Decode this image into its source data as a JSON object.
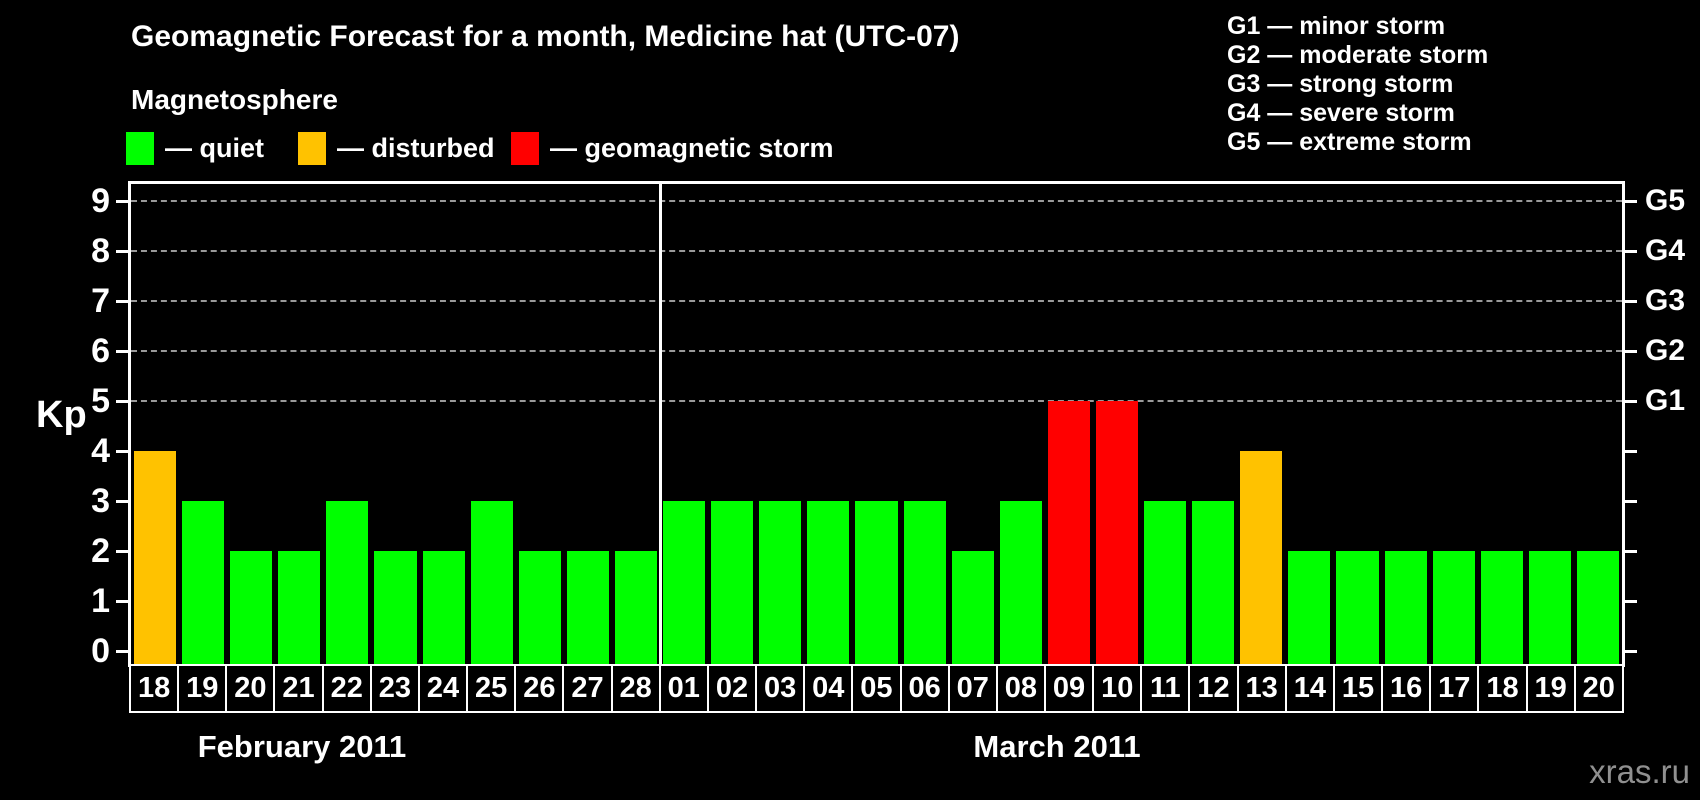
{
  "title": "Geomagnetic Forecast for a month, Medicine hat (UTC-07)",
  "legend": {
    "heading": "Magnetosphere",
    "items": [
      {
        "name": "quiet",
        "label": "— quiet",
        "color": "#00ff00"
      },
      {
        "name": "disturbed",
        "label": "— disturbed",
        "color": "#ffc200"
      },
      {
        "name": "storm",
        "label": "— geomagnetic storm",
        "color": "#ff0000"
      }
    ]
  },
  "g_scale_legend": {
    "lines": [
      "G1 — minor storm",
      "G2 — moderate storm",
      "G3 — strong storm",
      "G4 — severe storm",
      "G5 — extreme storm"
    ]
  },
  "watermark": "xras.ru",
  "chart_data": {
    "type": "bar",
    "title": "Geomagnetic Forecast for a month, Medicine hat (UTC-07)",
    "ylabel": "Kp",
    "ylim": [
      0,
      9
    ],
    "y_ticks": [
      0,
      1,
      2,
      3,
      4,
      5,
      6,
      7,
      8,
      9
    ],
    "gridlines_at_kp": [
      5,
      6,
      7,
      8,
      9
    ],
    "grid": "dashed horizontal lines at Kp 5 to 9",
    "legend_position": "top",
    "right_axis_ticks": [
      {
        "kp": 5,
        "label": "G1"
      },
      {
        "kp": 6,
        "label": "G2"
      },
      {
        "kp": 7,
        "label": "G3"
      },
      {
        "kp": 8,
        "label": "G4"
      },
      {
        "kp": 9,
        "label": "G5"
      }
    ],
    "status_colors": {
      "quiet": "#00ff00",
      "disturbed": "#ffc200",
      "storm": "#ff0000"
    },
    "months": [
      {
        "label": "February 2011",
        "days": [
          {
            "day": "18",
            "kp": 4,
            "status": "disturbed"
          },
          {
            "day": "19",
            "kp": 3,
            "status": "quiet"
          },
          {
            "day": "20",
            "kp": 2,
            "status": "quiet"
          },
          {
            "day": "21",
            "kp": 2,
            "status": "quiet"
          },
          {
            "day": "22",
            "kp": 3,
            "status": "quiet"
          },
          {
            "day": "23",
            "kp": 2,
            "status": "quiet"
          },
          {
            "day": "24",
            "kp": 2,
            "status": "quiet"
          },
          {
            "day": "25",
            "kp": 3,
            "status": "quiet"
          },
          {
            "day": "26",
            "kp": 2,
            "status": "quiet"
          },
          {
            "day": "27",
            "kp": 2,
            "status": "quiet"
          },
          {
            "day": "28",
            "kp": 2,
            "status": "quiet"
          }
        ]
      },
      {
        "label": "March 2011",
        "days": [
          {
            "day": "01",
            "kp": 3,
            "status": "quiet"
          },
          {
            "day": "02",
            "kp": 3,
            "status": "quiet"
          },
          {
            "day": "03",
            "kp": 3,
            "status": "quiet"
          },
          {
            "day": "04",
            "kp": 3,
            "status": "quiet"
          },
          {
            "day": "05",
            "kp": 3,
            "status": "quiet"
          },
          {
            "day": "06",
            "kp": 3,
            "status": "quiet"
          },
          {
            "day": "07",
            "kp": 2,
            "status": "quiet"
          },
          {
            "day": "08",
            "kp": 3,
            "status": "quiet"
          },
          {
            "day": "09",
            "kp": 5,
            "status": "storm"
          },
          {
            "day": "10",
            "kp": 5,
            "status": "storm"
          },
          {
            "day": "11",
            "kp": 3,
            "status": "quiet"
          },
          {
            "day": "12",
            "kp": 3,
            "status": "quiet"
          },
          {
            "day": "13",
            "kp": 4,
            "status": "disturbed"
          },
          {
            "day": "14",
            "kp": 2,
            "status": "quiet"
          },
          {
            "day": "15",
            "kp": 2,
            "status": "quiet"
          },
          {
            "day": "16",
            "kp": 2,
            "status": "quiet"
          },
          {
            "day": "17",
            "kp": 2,
            "status": "quiet"
          },
          {
            "day": "18",
            "kp": 2,
            "status": "quiet"
          },
          {
            "day": "19",
            "kp": 2,
            "status": "quiet"
          },
          {
            "day": "20",
            "kp": 2,
            "status": "quiet"
          }
        ]
      }
    ]
  }
}
